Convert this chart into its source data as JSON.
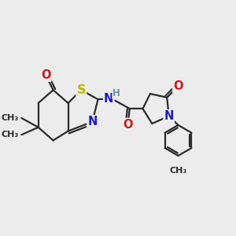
{
  "bg_color": "#ececec",
  "bond_color": "#2a2a2a",
  "S_color": "#b8b800",
  "N_color": "#1a1acc",
  "O_color": "#cc1a1a",
  "H_color": "#6699aa",
  "line_width": 1.6,
  "font_size": 10.5,
  "fig_size": [
    3.0,
    3.0
  ],
  "dpi": 100,
  "xlim": [
    0,
    12
  ],
  "ylim": [
    0,
    10
  ]
}
